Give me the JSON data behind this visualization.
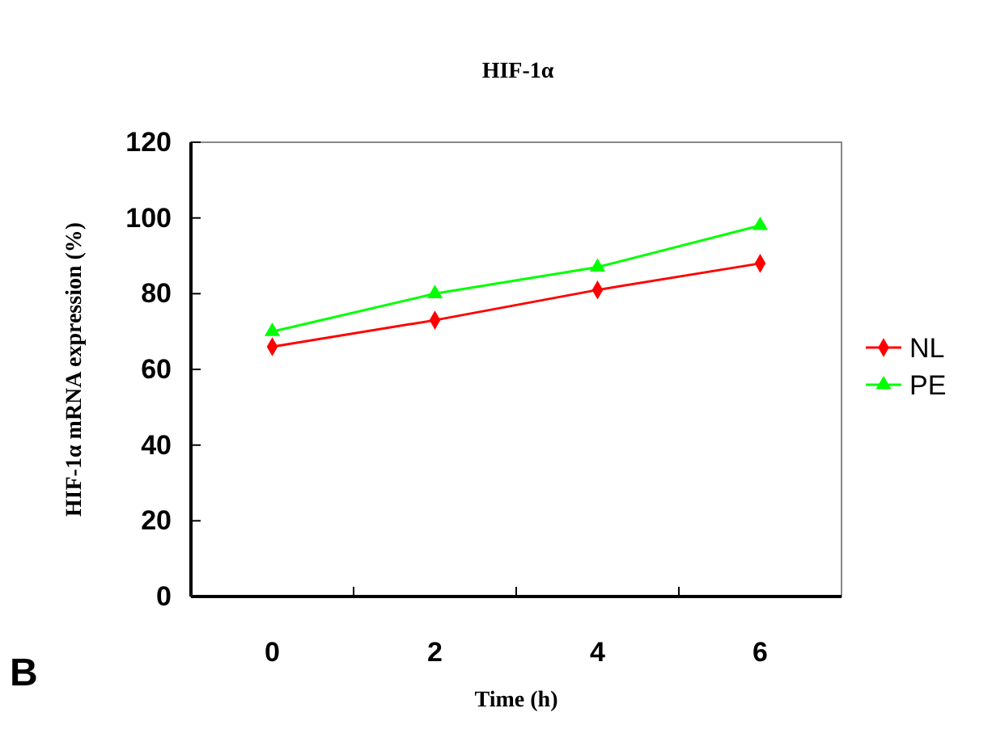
{
  "chart_data": {
    "type": "line",
    "title": "HIF-1α",
    "xlabel": "Time (h)",
    "ylabel": "HIF-1α mRNA expression (%)",
    "categories": [
      "0",
      "2",
      "4",
      "6"
    ],
    "series": [
      {
        "name": "NL",
        "color": "#ff0000",
        "marker": "diamond",
        "values": [
          66,
          73,
          81,
          88
        ]
      },
      {
        "name": "PE",
        "color": "#00ff00",
        "marker": "triangle",
        "values": [
          70,
          80,
          87,
          98
        ]
      }
    ],
    "ylim": [
      0,
      120
    ],
    "yticks": [
      0,
      20,
      40,
      60,
      80,
      100,
      120
    ],
    "legend": "right",
    "grid": false,
    "annotations": [
      "B"
    ]
  }
}
